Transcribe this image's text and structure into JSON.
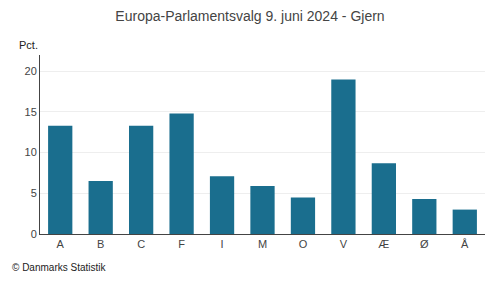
{
  "chart_data": {
    "type": "bar",
    "title": "Europa-Parlamentsvalg 9. juni 2024 - Gjern",
    "categories": [
      "A",
      "B",
      "C",
      "F",
      "I",
      "M",
      "O",
      "V",
      "Æ",
      "Ø",
      "Å"
    ],
    "values": [
      13.3,
      6.5,
      13.3,
      14.8,
      7.1,
      5.9,
      4.5,
      19.0,
      8.7,
      4.3,
      3.0
    ],
    "color": "#1a6e8e",
    "ylabel": "Pct.",
    "ylim": [
      0,
      22
    ],
    "yticks": [
      0,
      5,
      10,
      15,
      20
    ],
    "grid": true,
    "annotations": [
      "© Danmarks Statistik"
    ]
  }
}
